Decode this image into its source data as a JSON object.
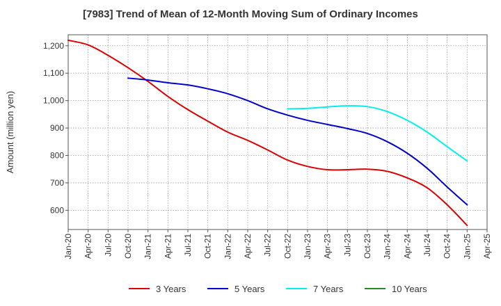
{
  "chart_data": {
    "type": "line",
    "title": "[7983]  Trend of Mean of 12-Month Moving Sum of Ordinary Incomes",
    "xlabel": "",
    "ylabel": "Amount (million yen)",
    "ylim": [
      530,
      1240
    ],
    "yticks": [
      600,
      700,
      800,
      900,
      1000,
      1100,
      1200
    ],
    "ytick_labels": [
      "600",
      "700",
      "800",
      "900",
      "1,000",
      "1,100",
      "1,200"
    ],
    "categories": [
      "Jan-20",
      "Apr-20",
      "Jul-20",
      "Oct-20",
      "Jan-21",
      "Apr-21",
      "Jul-21",
      "Oct-21",
      "Jan-22",
      "Apr-22",
      "Jul-22",
      "Oct-22",
      "Jan-23",
      "Apr-23",
      "Jul-23",
      "Oct-23",
      "Jan-24",
      "Apr-24",
      "Jul-24",
      "Oct-24",
      "Jan-25",
      "Apr-25"
    ],
    "grid": true,
    "legend_position": "bottom",
    "series": [
      {
        "name": "3 Years",
        "color": "#dd0000",
        "values": [
          1220,
          1203,
          1165,
          1120,
          1070,
          1015,
          967,
          925,
          885,
          855,
          820,
          783,
          760,
          748,
          748,
          750,
          742,
          718,
          682,
          620,
          545,
          null
        ]
      },
      {
        "name": "5 Years",
        "color": "#0000cc",
        "values": [
          null,
          null,
          null,
          1082,
          1075,
          1065,
          1057,
          1043,
          1025,
          1000,
          970,
          947,
          928,
          913,
          898,
          880,
          850,
          808,
          753,
          685,
          620,
          null
        ]
      },
      {
        "name": "7 Years",
        "color": "#00eeee",
        "values": [
          null,
          null,
          null,
          null,
          null,
          null,
          null,
          null,
          null,
          null,
          null,
          970,
          972,
          977,
          981,
          978,
          960,
          928,
          885,
          832,
          780,
          null
        ]
      },
      {
        "name": "10 Years",
        "color": "#228b22",
        "values": [
          null,
          null,
          null,
          null,
          null,
          null,
          null,
          null,
          null,
          null,
          null,
          null,
          null,
          null,
          null,
          null,
          null,
          null,
          null,
          null,
          null,
          null
        ]
      }
    ]
  }
}
